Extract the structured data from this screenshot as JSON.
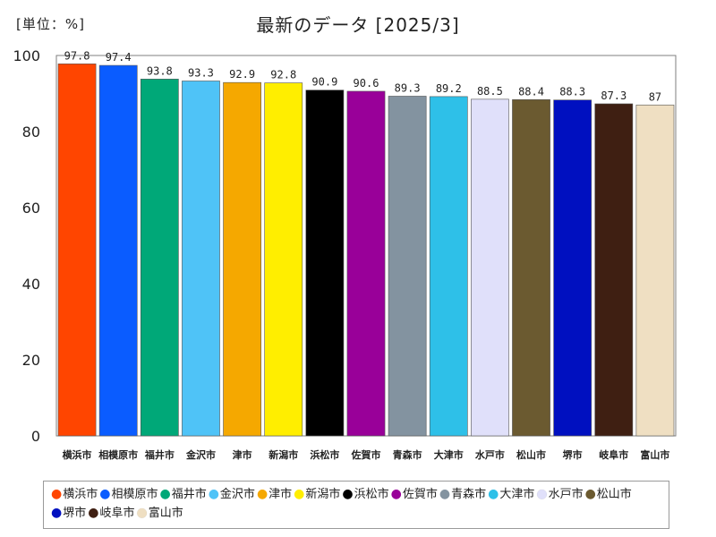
{
  "unit_label": "[単位：%]",
  "chart_title": "最新のデータ [2025/3]",
  "chart_data": {
    "type": "bar",
    "title": "最新のデータ [2025/3]",
    "unit": "[単位：%]",
    "categories": [
      "横浜市",
      "相模原市",
      "福井市",
      "金沢市",
      "津市",
      "新潟市",
      "浜松市",
      "佐賀市",
      "青森市",
      "大津市",
      "水戸市",
      "松山市",
      "堺市",
      "岐阜市",
      "富山市"
    ],
    "values": [
      97.8,
      97.4,
      93.8,
      93.3,
      92.9,
      92.8,
      90.9,
      90.6,
      89.3,
      89.2,
      88.5,
      88.4,
      88.3,
      87.3,
      87
    ],
    "value_labels": [
      "97.8",
      "97.4",
      "93.8",
      "93.3",
      "92.9",
      "92.8",
      "90.9",
      "90.6",
      "89.3",
      "89.2",
      "88.5",
      "88.4",
      "88.3",
      "87.3",
      "87"
    ],
    "colors": [
      "#ff4500",
      "#0a5cff",
      "#00a878",
      "#4fc3f7",
      "#f5a800",
      "#ffee00",
      "#000000",
      "#990099",
      "#8393a0",
      "#2ec0e8",
      "#e0e0fa",
      "#6b5a30",
      "#0010c0",
      "#3f1f12",
      "#efdfc2"
    ],
    "ylim": [
      0,
      100
    ],
    "yticks": [
      "0",
      "20",
      "40",
      "60",
      "80",
      "100"
    ],
    "legend_position": "bottom",
    "grid": false
  }
}
